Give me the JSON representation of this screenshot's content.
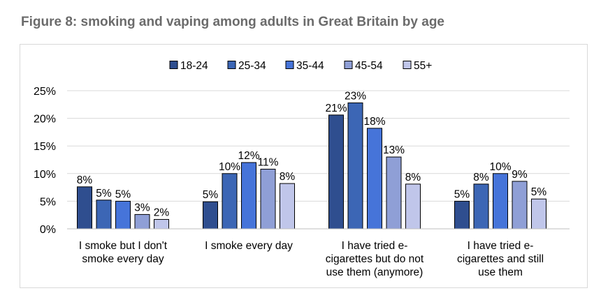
{
  "figure": {
    "title": "Figure 8: smoking and vaping among adults in Great Britain by age"
  },
  "chart_data": {
    "type": "bar",
    "categories": [
      [
        "I smoke but I don't",
        "smoke every day"
      ],
      [
        "I smoke every day"
      ],
      [
        "I have tried e-",
        "cigarettes but do not",
        "use them (anymore)"
      ],
      [
        "I have tried e-",
        "cigarettes and still",
        "use them"
      ]
    ],
    "series": [
      {
        "name": "18-24",
        "color": "#2f4e8f",
        "values": [
          7.6,
          4.9,
          20.6,
          5.0
        ],
        "labels": [
          "8%",
          "5%",
          "21%",
          "5%"
        ]
      },
      {
        "name": "25-34",
        "color": "#3c66b5",
        "values": [
          5.2,
          10.0,
          22.8,
          8.1
        ],
        "labels": [
          "5%",
          "10%",
          "23%",
          "8%"
        ]
      },
      {
        "name": "35-44",
        "color": "#4674d9",
        "values": [
          5.0,
          12.0,
          18.2,
          10.0
        ],
        "labels": [
          "5%",
          "12%",
          "18%",
          "10%"
        ]
      },
      {
        "name": "45-54",
        "color": "#8f9fd6",
        "values": [
          2.6,
          10.8,
          13.0,
          8.6
        ],
        "labels": [
          "3%",
          "11%",
          "13%",
          "9%"
        ]
      },
      {
        "name": "55+",
        "color": "#c0c6ea",
        "values": [
          1.7,
          8.2,
          8.1,
          5.4
        ],
        "labels": [
          "2%",
          "8%",
          "8%",
          "5%"
        ]
      }
    ],
    "y_ticks": [
      "0%",
      "5%",
      "10%",
      "15%",
      "20%",
      "25%"
    ],
    "ylim": [
      0,
      25
    ],
    "grid": true,
    "legend_position": "top-center",
    "xlabel": "",
    "ylabel": ""
  }
}
